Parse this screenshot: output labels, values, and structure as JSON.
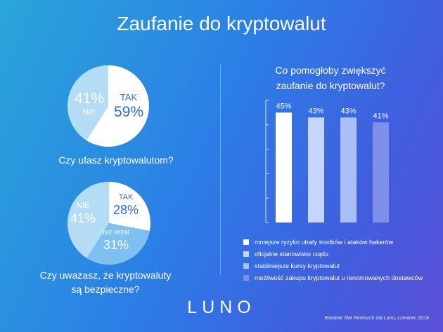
{
  "header": {
    "title": "Zaufanie do kryptowalut"
  },
  "colors": {
    "white": "#ffffff",
    "light_blue": "#b5dcf5",
    "mid_blue": "#7ec0ef",
    "bar2": "#c5d6fa",
    "bar3": "#a9bff7",
    "bar4": "#7e90ea"
  },
  "pie1": {
    "question": "Czy ufasz kryptowalutom?",
    "slices": [
      {
        "label": "TAK",
        "value": 59,
        "display": "59%"
      },
      {
        "label": "NIE",
        "value": 41,
        "display": "41%"
      }
    ]
  },
  "pie2": {
    "question_line1": "Czy uważasz, że kryptowaluty",
    "question_line2": "są bezpieczne?",
    "slices": [
      {
        "label": "TAK",
        "value": 28,
        "display": "28%"
      },
      {
        "label": "NIE WIEM",
        "value": 31,
        "display": "31%"
      },
      {
        "label": "NIE",
        "value": 41,
        "display": "41%"
      }
    ]
  },
  "chart_data": {
    "type": "bar",
    "title": "Co pomogłoby zwiększyć zaufanie do kryptowalut?",
    "title_line1": "Co pomogłoby zwiększyć",
    "title_line2": "zaufanie do kryptowalut?",
    "categories": [
      "mniejsze ryzyko utraty środków i ataków hakerów",
      "oficjalne stanowisko rządu",
      "stabilniejsze kursy kryptowalut",
      "możliwość zakupu kryptowalut u renomowanych dostawców"
    ],
    "values": [
      45,
      43,
      43,
      41
    ],
    "value_labels": [
      "45%",
      "43%",
      "43%",
      "41%"
    ],
    "ylim": [
      0,
      50
    ],
    "legend_position": "bottom",
    "grid": false
  },
  "footer": {
    "logo": "LUNO",
    "source": "Badanie SW Research dla Luno, czerwiec 2018"
  }
}
